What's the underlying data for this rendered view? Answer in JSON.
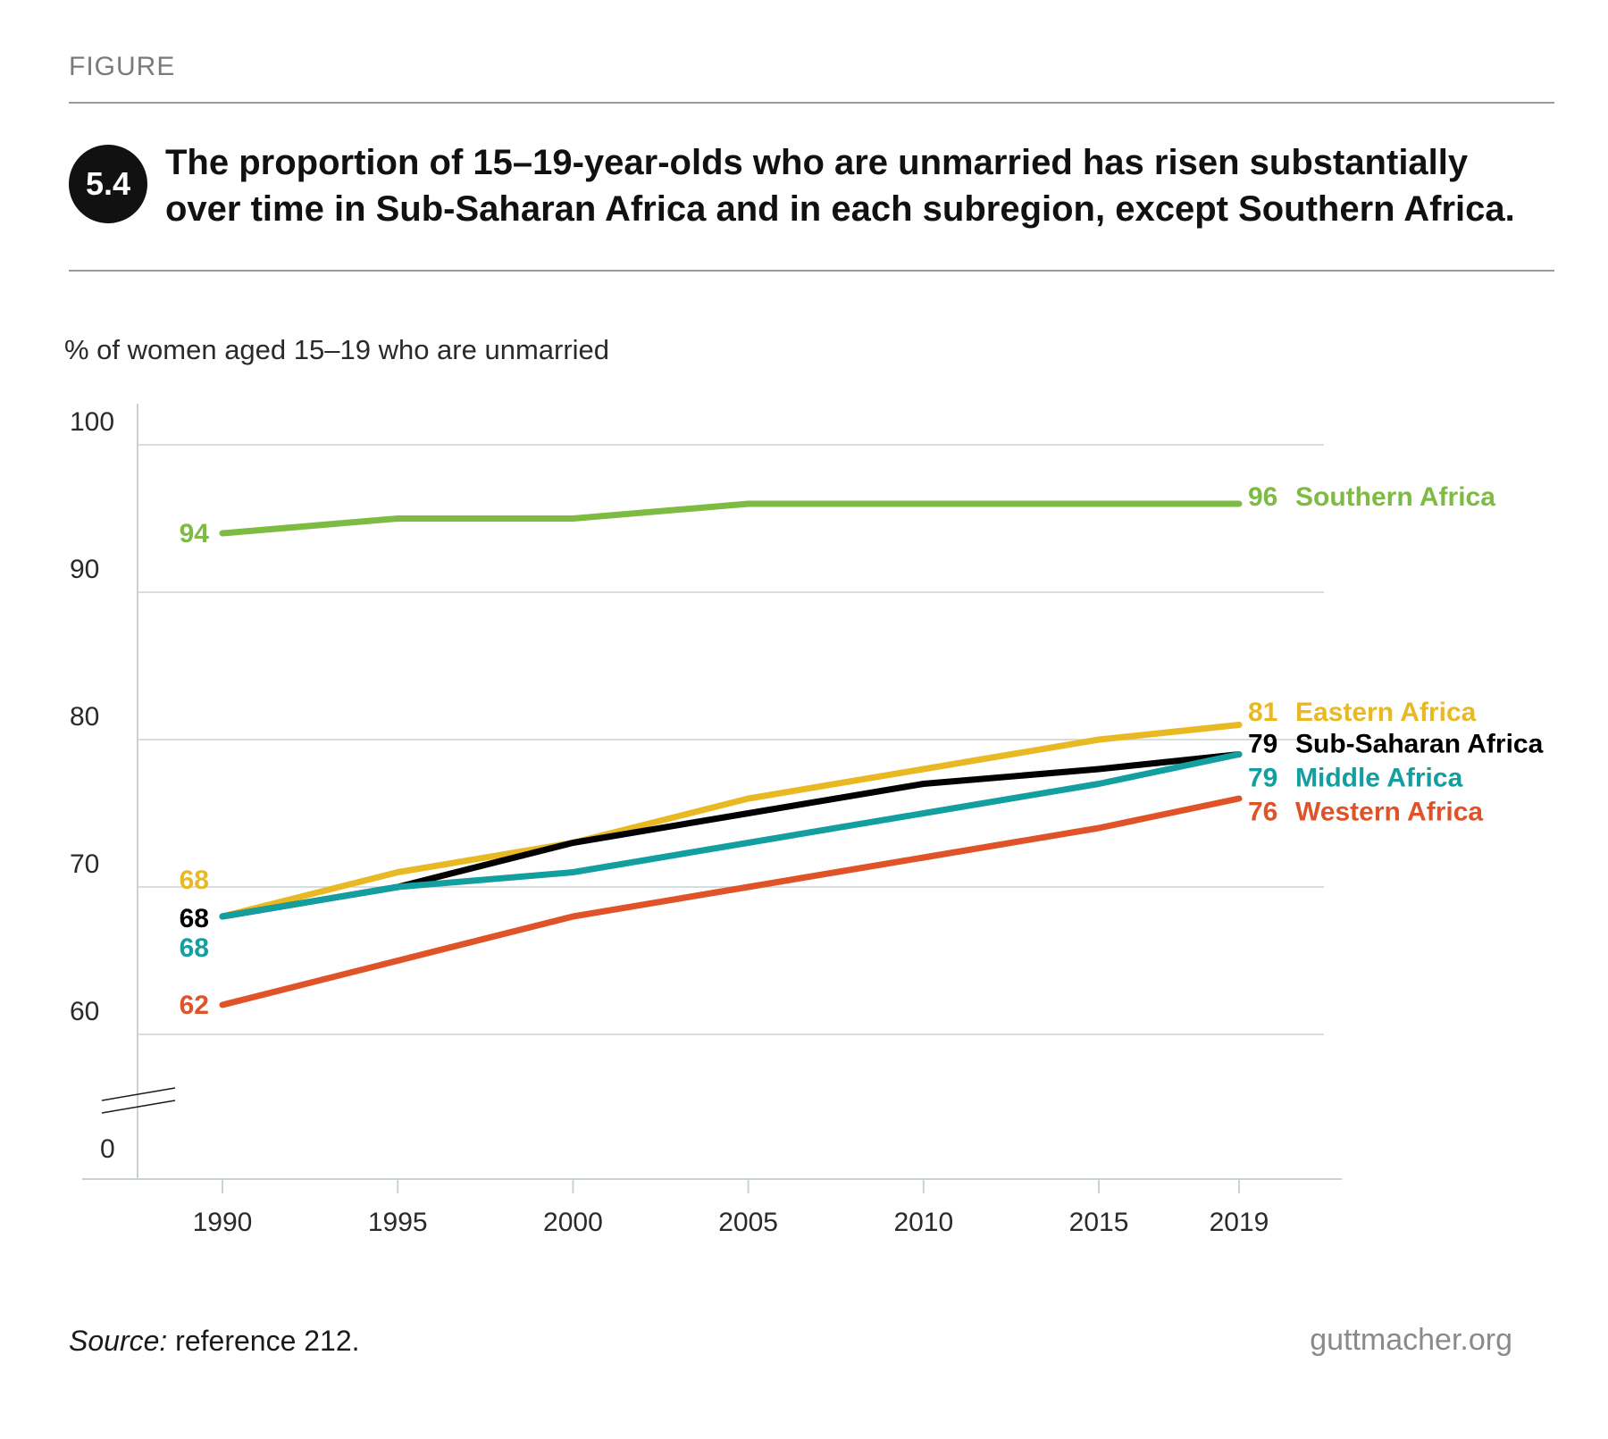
{
  "header": {
    "figure_label": "FIGURE",
    "figure_number": "5.4",
    "title_line1": "The proportion of 15–19-year-olds who are unmarried has risen substantially",
    "title_line2": "over time in Sub-Saharan Africa and in each subregion, except Southern Africa."
  },
  "footer": {
    "source_prefix": "Source:",
    "source_text": " reference 212.",
    "site": "guttmacher.org"
  },
  "chart_data": {
    "type": "line",
    "title": "",
    "ylabel": "% of women aged 15–19 who are unmarried",
    "xlabel": "",
    "x": [
      1990,
      1995,
      2000,
      2005,
      2010,
      2015,
      2019
    ],
    "x_tick_labels": [
      "1990",
      "1995",
      "2000",
      "2005",
      "2010",
      "2015",
      "2019"
    ],
    "y_tick_labels": [
      "0",
      "60",
      "70",
      "80",
      "90",
      "100"
    ],
    "ylim": [
      60,
      100
    ],
    "y_axis_break": true,
    "grid": true,
    "legend": "inline labels at line ends",
    "series": [
      {
        "name": "Southern Africa",
        "color": "#7dbb42",
        "values": [
          94,
          95,
          95,
          96,
          96,
          96,
          96
        ],
        "start_label": "94",
        "end_label": "96"
      },
      {
        "name": "Eastern Africa",
        "color": "#e8b923",
        "values": [
          68,
          71,
          73,
          76,
          78,
          80,
          81
        ],
        "start_label": "68",
        "end_label": "81"
      },
      {
        "name": "Sub-Saharan Africa",
        "color": "#000000",
        "values": [
          68,
          70,
          73,
          75,
          77,
          78,
          79
        ],
        "start_label": "68",
        "end_label": "79"
      },
      {
        "name": "Middle Africa",
        "color": "#139f9f",
        "values": [
          68,
          70,
          71,
          73,
          75,
          77,
          79
        ],
        "start_label": "68",
        "end_label": "79"
      },
      {
        "name": "Western Africa",
        "color": "#e05227",
        "values": [
          62,
          65,
          68,
          70,
          72,
          74,
          76
        ],
        "start_label": "62",
        "end_label": "76"
      }
    ]
  }
}
